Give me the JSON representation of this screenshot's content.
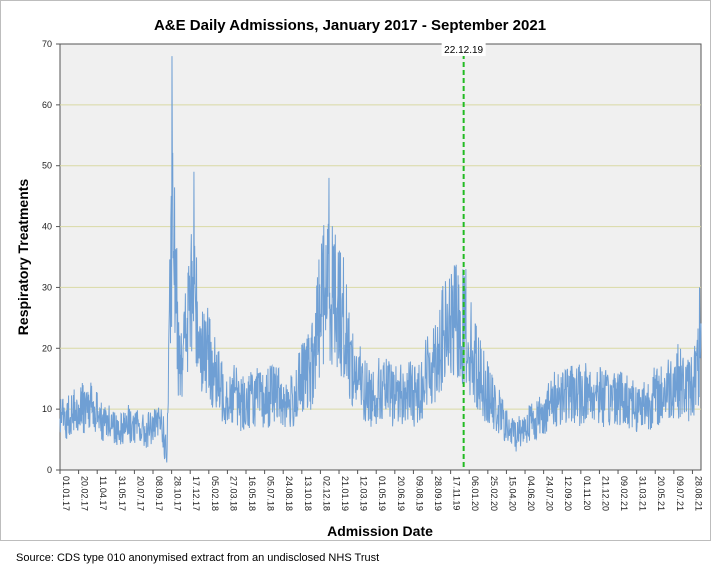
{
  "chart_data": {
    "type": "line",
    "title": "A&E Daily Admissions, January 2017 - September 2021",
    "xlabel": "Admission Date",
    "ylabel": "Respiratory Treatments",
    "ylim": [
      0,
      70
    ],
    "yticks": [
      0,
      10,
      20,
      30,
      40,
      50,
      60,
      70
    ],
    "xlim": [
      "2017-01-01",
      "2021-09-20"
    ],
    "xticks": [
      "01.01.17",
      "20.02.17",
      "11.04.17",
      "31.05.17",
      "20.07.17",
      "08.09.17",
      "28.10.17",
      "17.12.17",
      "05.02.18",
      "27.03.18",
      "16.05.18",
      "05.07.18",
      "24.08.18",
      "13.10.18",
      "02.12.18",
      "21.01.19",
      "12.03.19",
      "01.05.19",
      "20.06.19",
      "09.08.19",
      "28.09.19",
      "17.11.19",
      "06.01.20",
      "25.02.20",
      "15.04.20",
      "04.06.20",
      "24.07.20",
      "12.09.20",
      "01.11.20",
      "21.12.20",
      "09.02.21",
      "31.03.21",
      "20.05.21",
      "09.07.21",
      "28.08.21"
    ],
    "grid": true,
    "series_color": "#6f9fd4",
    "reference_line": {
      "label": "22.12.19",
      "date": "2019-12-22",
      "color": "#22bb22",
      "style": "dashed"
    },
    "series": [
      {
        "x": [
          "2017-01-01",
          "2017-01-15",
          "2017-02-01",
          "2017-02-15",
          "2017-03-01",
          "2017-03-15",
          "2017-04-01",
          "2017-04-15",
          "2017-05-01",
          "2017-05-15",
          "2017-06-01",
          "2017-06-15",
          "2017-07-01",
          "2017-07-15",
          "2017-08-01",
          "2017-08-15",
          "2017-09-01",
          "2017-09-15",
          "2017-10-01",
          "2017-10-15",
          "2017-10-25",
          "2017-10-31",
          "2017-11-15",
          "2017-12-01",
          "2017-12-15",
          "2017-12-25",
          "2018-01-15",
          "2018-02-01",
          "2018-02-15",
          "2018-03-01",
          "2018-03-15",
          "2018-04-01",
          "2018-04-15",
          "2018-05-01",
          "2018-05-15",
          "2018-06-01",
          "2018-06-15",
          "2018-07-01",
          "2018-07-15",
          "2018-08-01",
          "2018-08-15",
          "2018-09-01",
          "2018-09-15",
          "2018-10-01",
          "2018-10-15",
          "2018-11-01",
          "2018-11-15",
          "2018-12-01",
          "2018-12-15",
          "2019-01-01",
          "2019-01-15",
          "2019-02-01",
          "2019-02-15",
          "2019-03-01",
          "2019-03-15",
          "2019-04-01",
          "2019-04-15",
          "2019-05-01",
          "2019-05-15",
          "2019-06-01",
          "2019-06-15",
          "2019-07-01",
          "2019-07-15",
          "2019-08-01",
          "2019-08-15",
          "2019-09-01",
          "2019-09-15",
          "2019-10-01",
          "2019-10-15",
          "2019-11-01",
          "2019-11-15",
          "2019-12-01",
          "2019-12-15",
          "2020-01-01",
          "2020-01-15",
          "2020-02-01",
          "2020-02-15",
          "2020-03-01",
          "2020-03-15",
          "2020-04-01",
          "2020-04-15",
          "2020-05-01",
          "2020-05-15",
          "2020-06-01",
          "2020-06-15",
          "2020-07-01",
          "2020-07-15",
          "2020-08-01",
          "2020-08-15",
          "2020-09-01",
          "2020-09-15",
          "2020-10-01",
          "2020-10-15",
          "2020-11-01",
          "2020-11-15",
          "2020-12-01",
          "2020-12-15",
          "2021-01-01",
          "2021-01-15",
          "2021-02-01",
          "2021-02-15",
          "2021-03-01",
          "2021-03-15",
          "2021-04-01",
          "2021-04-15",
          "2021-05-01",
          "2021-05-15",
          "2021-06-01",
          "2021-06-15",
          "2021-07-01",
          "2021-07-15",
          "2021-08-01",
          "2021-08-15",
          "2021-09-01",
          "2021-09-15"
        ],
        "y": [
          9,
          8,
          10,
          9,
          10,
          11,
          10,
          9,
          8,
          8,
          7,
          7,
          8,
          7,
          7,
          6,
          7,
          7,
          8,
          2,
          30,
          40,
          21,
          20,
          27,
          29,
          21,
          19,
          17,
          14,
          13,
          12,
          13,
          11,
          11,
          12,
          12,
          11,
          12,
          13,
          12,
          11,
          11,
          13,
          15,
          16,
          18,
          27,
          30,
          30,
          28,
          25,
          20,
          16,
          15,
          13,
          12,
          13,
          13,
          13,
          12,
          13,
          12,
          13,
          12,
          14,
          16,
          18,
          20,
          22,
          23,
          24,
          24,
          22,
          19,
          16,
          14,
          12,
          10,
          9,
          7,
          6,
          6,
          7,
          8,
          8,
          9,
          10,
          11,
          12,
          13,
          12,
          13,
          12,
          13,
          12,
          13,
          12,
          11,
          13,
          12,
          11,
          12,
          10,
          11,
          11,
          12,
          12,
          13,
          14,
          15,
          14,
          13,
          15,
          17
        ]
      }
    ],
    "peaks": [
      {
        "date": "2017-10-29",
        "value": 68
      },
      {
        "date": "2017-12-27",
        "value": 49
      },
      {
        "date": "2018-12-25",
        "value": 48
      },
      {
        "date": "2019-12-28",
        "value": 33
      },
      {
        "date": "2021-09-16",
        "value": 30
      }
    ]
  },
  "source": "Source: CDS type 010 anonymised extract from an undisclosed NHS Trust"
}
